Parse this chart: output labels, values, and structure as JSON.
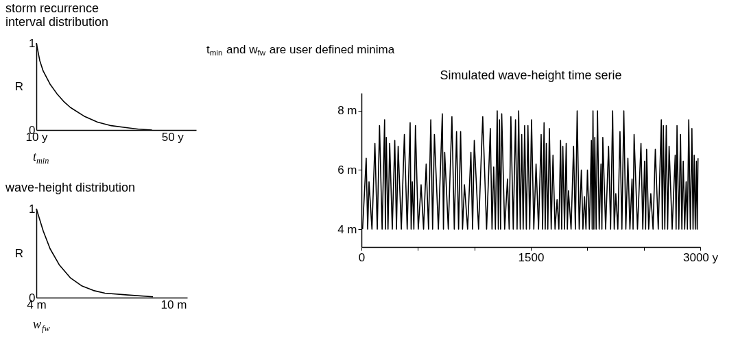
{
  "chart_data": [
    {
      "type": "line",
      "title": "storm recurrence\ninterval distribution",
      "xlabel": "t$_{min}$",
      "ylabel": "R",
      "xlim": [
        10,
        57
      ],
      "ylim": [
        0,
        1
      ],
      "xticks": [
        {
          "value": 10,
          "label": "10 y"
        },
        {
          "value": 50,
          "label": "50 y"
        }
      ],
      "yticks": [
        0,
        1
      ],
      "x": [
        10,
        11,
        12,
        14,
        16,
        18,
        20,
        24,
        28,
        32,
        36,
        40,
        44
      ],
      "series": [
        {
          "color": "#000000",
          "values": [
            1.0,
            0.8,
            0.68,
            0.53,
            0.42,
            0.33,
            0.26,
            0.16,
            0.09,
            0.05,
            0.03,
            0.01,
            0.0
          ]
        }
      ]
    },
    {
      "type": "line",
      "title": "wave-height distribution",
      "xlabel": "w$_{fw}$",
      "ylabel": "R",
      "xlim": [
        4,
        10.6
      ],
      "ylim": [
        0,
        1
      ],
      "xticks": [
        {
          "value": 4,
          "label": "4 m"
        },
        {
          "value": 10,
          "label": "10 m"
        }
      ],
      "yticks": [
        0,
        1
      ],
      "x": [
        4,
        4.3,
        4.6,
        5,
        5.5,
        6,
        6.5,
        7,
        8,
        9.1
      ],
      "series": [
        {
          "color": "#000000",
          "values": [
            1.0,
            0.75,
            0.55,
            0.37,
            0.22,
            0.13,
            0.08,
            0.05,
            0.03,
            0.01
          ]
        }
      ]
    },
    {
      "type": "line",
      "title": "Simulated wave-height time serie",
      "annotations": [
        "t$_{min}$ and w$_{fw}$ are user  defined minima"
      ],
      "xlim": [
        0,
        3000
      ],
      "ylim": [
        3.4,
        8.6
      ],
      "xticks": [
        0,
        {
          "value": 500,
          "label": null
        },
        {
          "value": 1000,
          "label": null
        },
        1500,
        {
          "value": 2000,
          "label": null
        },
        {
          "value": 2500,
          "label": null
        },
        {
          "value": 3000,
          "label": "3000 y"
        }
      ],
      "yticks": [
        {
          "value": 4,
          "label": "4 m"
        },
        {
          "value": 6,
          "label": "6 m"
        },
        {
          "value": 8,
          "label": "8 m"
        }
      ],
      "x": [
        10,
        42,
        55,
        67,
        93,
        119,
        140,
        160,
        183,
        205,
        212,
        220,
        235,
        250,
        273,
        295,
        310,
        325,
        353,
        380,
        405,
        431,
        440,
        450,
        464,
        478,
        503,
        528,
        550,
        573,
        594,
        614,
        630,
        646,
        681,
        716,
        726,
        737,
        769,
        801,
        822,
        842,
        860,
        878,
        895,
        912,
        940,
        969,
        984,
        999,
        1037,
        1074,
        1108,
        1141,
        1156,
        1171,
        1186,
        1202,
        1212,
        1222,
        1232,
        1242,
        1268,
        1293,
        1308,
        1323,
        1344,
        1364,
        1378,
        1392,
        1406,
        1419,
        1432,
        1445,
        1460,
        1474,
        1490,
        1506,
        1526,
        1546,
        1568,
        1591,
        1604,
        1617,
        1627,
        1637,
        1650,
        1664,
        1680,
        1696,
        1714,
        1732,
        1748,
        1763,
        1773,
        1783,
        1798,
        1813,
        1823,
        1833,
        1856,
        1878,
        1894,
        1910,
        1928,
        1947,
        1961,
        1975,
        1988,
        2001,
        2018,
        2036,
        2043,
        2050,
        2058,
        2066,
        2078,
        2090,
        2105,
        2121,
        2129,
        2137,
        2162,
        2188,
        2206,
        2224,
        2238,
        2252,
        2270,
        2289,
        2306,
        2323,
        2341,
        2359,
        2377,
        2396,
        2405,
        2414,
        2444,
        2475,
        2491,
        2507,
        2516,
        2525,
        2543,
        2562,
        2582,
        2602,
        2628,
        2655,
        2664,
        2673,
        2686,
        2699,
        2711,
        2724,
        2751,
        2778,
        2786,
        2794,
        2810,
        2825,
        2837,
        2849,
        2862,
        2875,
        2886,
        2898,
        2912,
        2926,
        2936,
        2946,
        2956,
        2966,
        2973,
        2980
      ],
      "series": [
        {
          "color": "#000000",
          "values": [
            4,
            6.4,
            4,
            5.6,
            4,
            6.9,
            4,
            7.5,
            4,
            7.7,
            4,
            7.1,
            4,
            6.9,
            4,
            7.0,
            4,
            6.8,
            4,
            7.2,
            4,
            7.6,
            4,
            5.6,
            4,
            7.5,
            4,
            5.5,
            4,
            6.2,
            4,
            7.7,
            4,
            7.2,
            4,
            7.9,
            4,
            6.6,
            4,
            7.8,
            4,
            7.3,
            4,
            7.3,
            4,
            5.5,
            4,
            6.6,
            4,
            7.0,
            4,
            7.8,
            4,
            7.4,
            4,
            6.1,
            4,
            8.0,
            4,
            7.7,
            4,
            7.9,
            4,
            5.7,
            4,
            7.8,
            4,
            7.7,
            4,
            8.0,
            4,
            7.2,
            4,
            7.5,
            4,
            7.5,
            4,
            7.7,
            4,
            6.2,
            4,
            7.2,
            4,
            7.6,
            4,
            6.9,
            4,
            7.4,
            4,
            6.5,
            4,
            5.0,
            4,
            7.0,
            4,
            6.8,
            4,
            6.9,
            4,
            5.3,
            4,
            6.8,
            4,
            8.0,
            4,
            6.0,
            4,
            5.1,
            4,
            6.0,
            4,
            7.0,
            4,
            8.0,
            4,
            7.1,
            4,
            8.0,
            4,
            6.2,
            4,
            7.1,
            4,
            6.8,
            4,
            8.0,
            4,
            5.2,
            4,
            7.3,
            4,
            8.0,
            4,
            6.4,
            4,
            5.7,
            4,
            7.2,
            4,
            6.9,
            4,
            6.3,
            4,
            6.7,
            4,
            5.2,
            4,
            6.7,
            4,
            7.7,
            4,
            7.5,
            4,
            7.5,
            4,
            6.8,
            4,
            6.5,
            4,
            7.5,
            4,
            7.2,
            4,
            6.3,
            4,
            5.6,
            4,
            7.7,
            4,
            7.4,
            4,
            6.5,
            4,
            6.3,
            4,
            6.4
          ]
        }
      ]
    }
  ]
}
